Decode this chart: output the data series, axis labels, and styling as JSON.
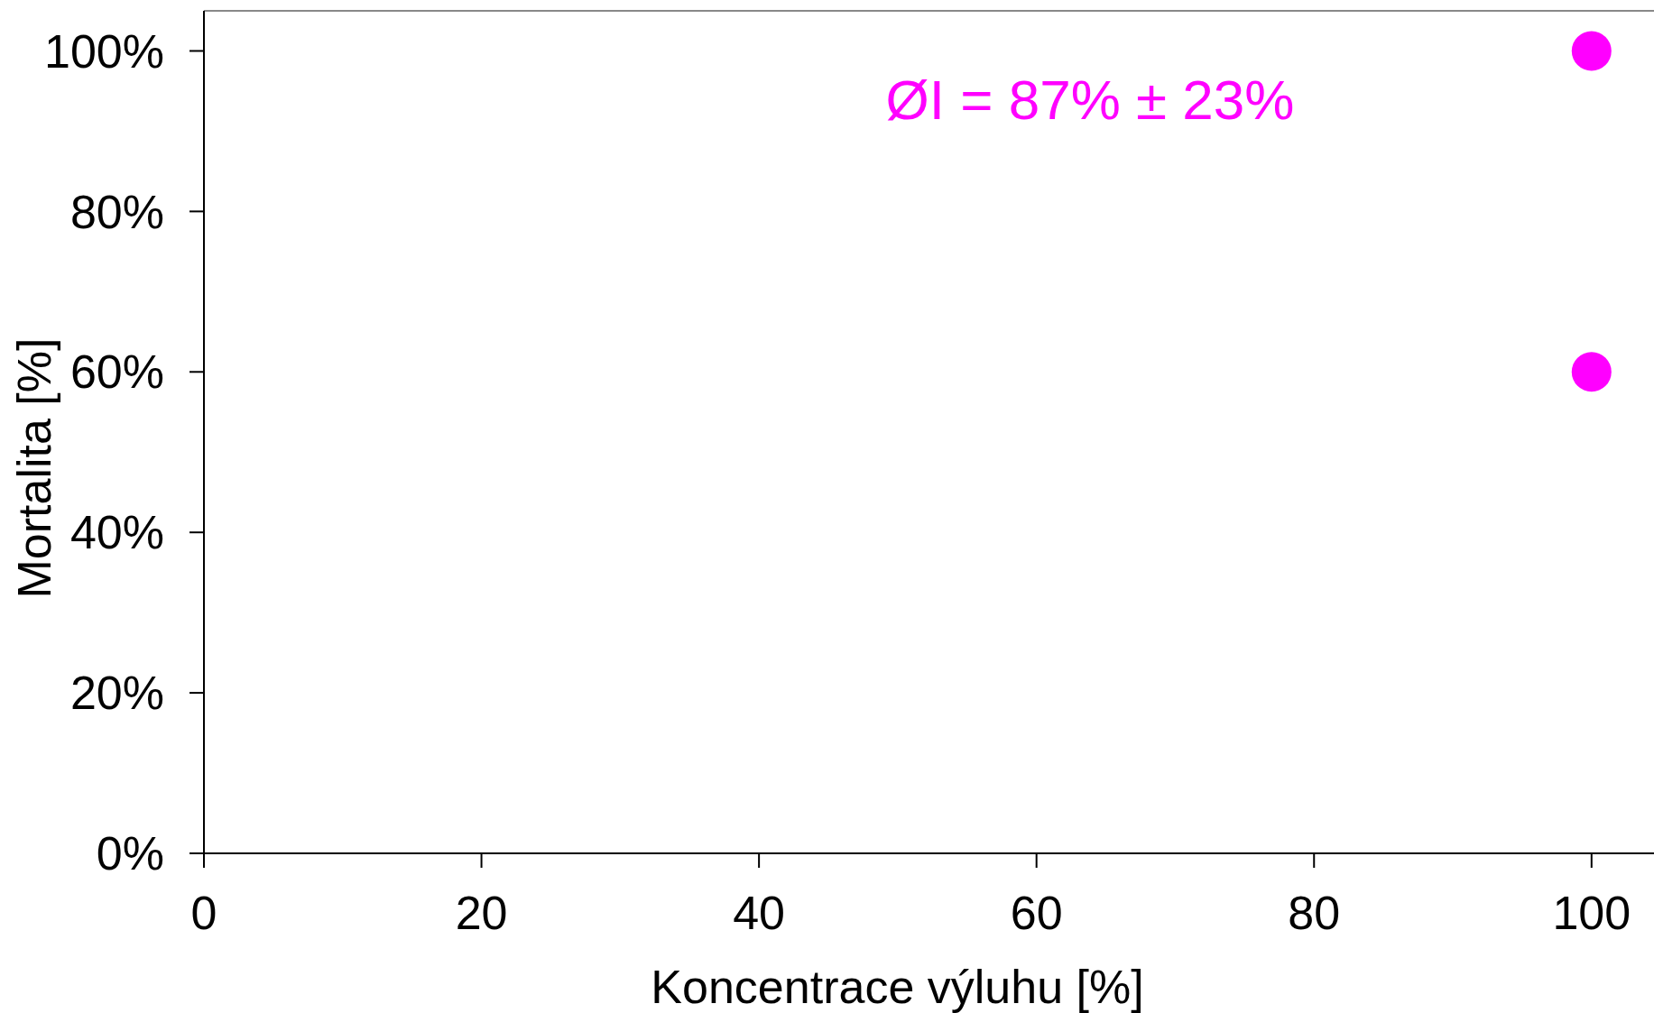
{
  "chart_data": {
    "type": "scatter",
    "xlabel": "Koncentrace výluhu [%]",
    "ylabel": "Mortalita [%]",
    "xlim": [
      0,
      104.5
    ],
    "xticks": [
      0,
      20,
      40,
      60,
      80,
      100
    ],
    "ylim": [
      0,
      105
    ],
    "yticks": [
      {
        "value": 0,
        "label": "0%"
      },
      {
        "value": 20,
        "label": "20%"
      },
      {
        "value": 40,
        "label": "40%"
      },
      {
        "value": 60,
        "label": "60%"
      },
      {
        "value": 80,
        "label": "80%"
      },
      {
        "value": 100,
        "label": "100%"
      }
    ],
    "series": [
      {
        "color": "#ff00ff",
        "x": [
          100,
          100
        ],
        "values": [
          100,
          60
        ]
      }
    ],
    "marker": "circle",
    "grid": false,
    "annotations": [
      "ØI = 87% ± 23%"
    ]
  }
}
